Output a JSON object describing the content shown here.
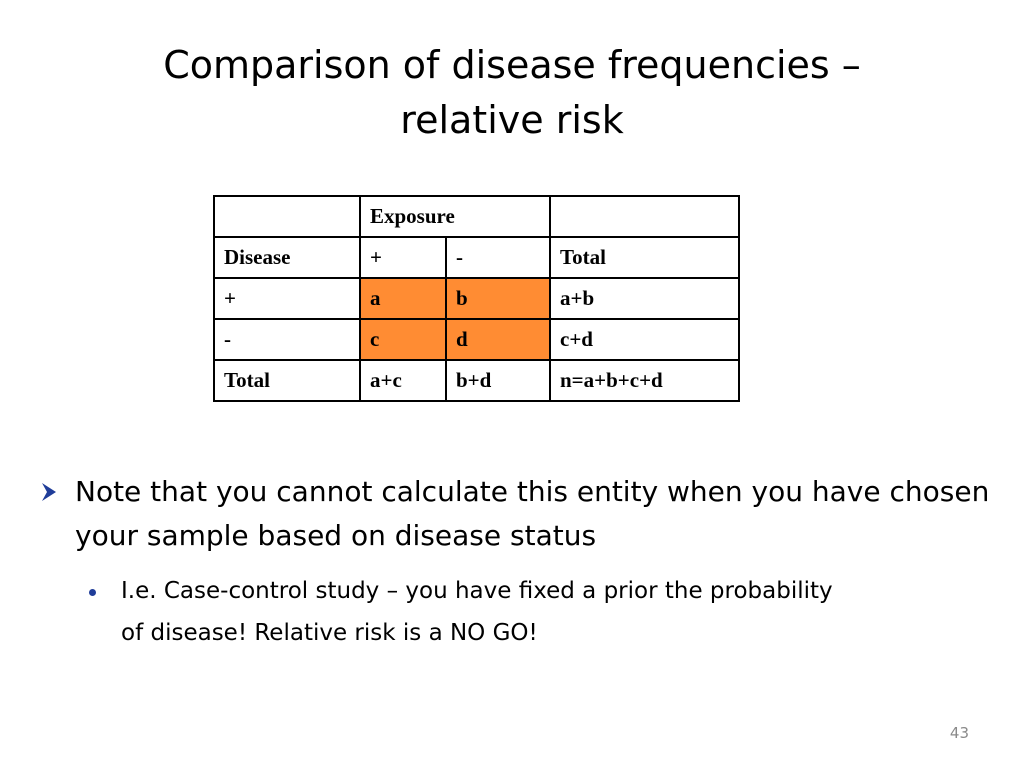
{
  "title": {
    "line1": "Comparison of disease frequencies –",
    "line2": "relative risk"
  },
  "table": {
    "rows": [
      [
        "",
        "Exposure",
        "",
        ""
      ],
      [
        "Disease",
        "+",
        "-",
        "Total"
      ],
      [
        "+",
        "a",
        "b",
        "a+b"
      ],
      [
        "-",
        "c",
        "d",
        "c+d"
      ],
      [
        "Total",
        "a+c",
        "b+d",
        "n=a+b+c+d"
      ]
    ],
    "highlight_color": "#ff8c33"
  },
  "bullets": [
    {
      "icon": "arrow-bullet-icon",
      "text": "Note that you cannot calculate this entity when you have chosen your sample based on disease status",
      "sub": [
        {
          "icon": "dot-bullet-icon",
          "text": "I.e. Case-control study – you have fixed a prior the probability of disease!  Relative risk is a NO GO!"
        }
      ]
    }
  ],
  "page_number": "43"
}
